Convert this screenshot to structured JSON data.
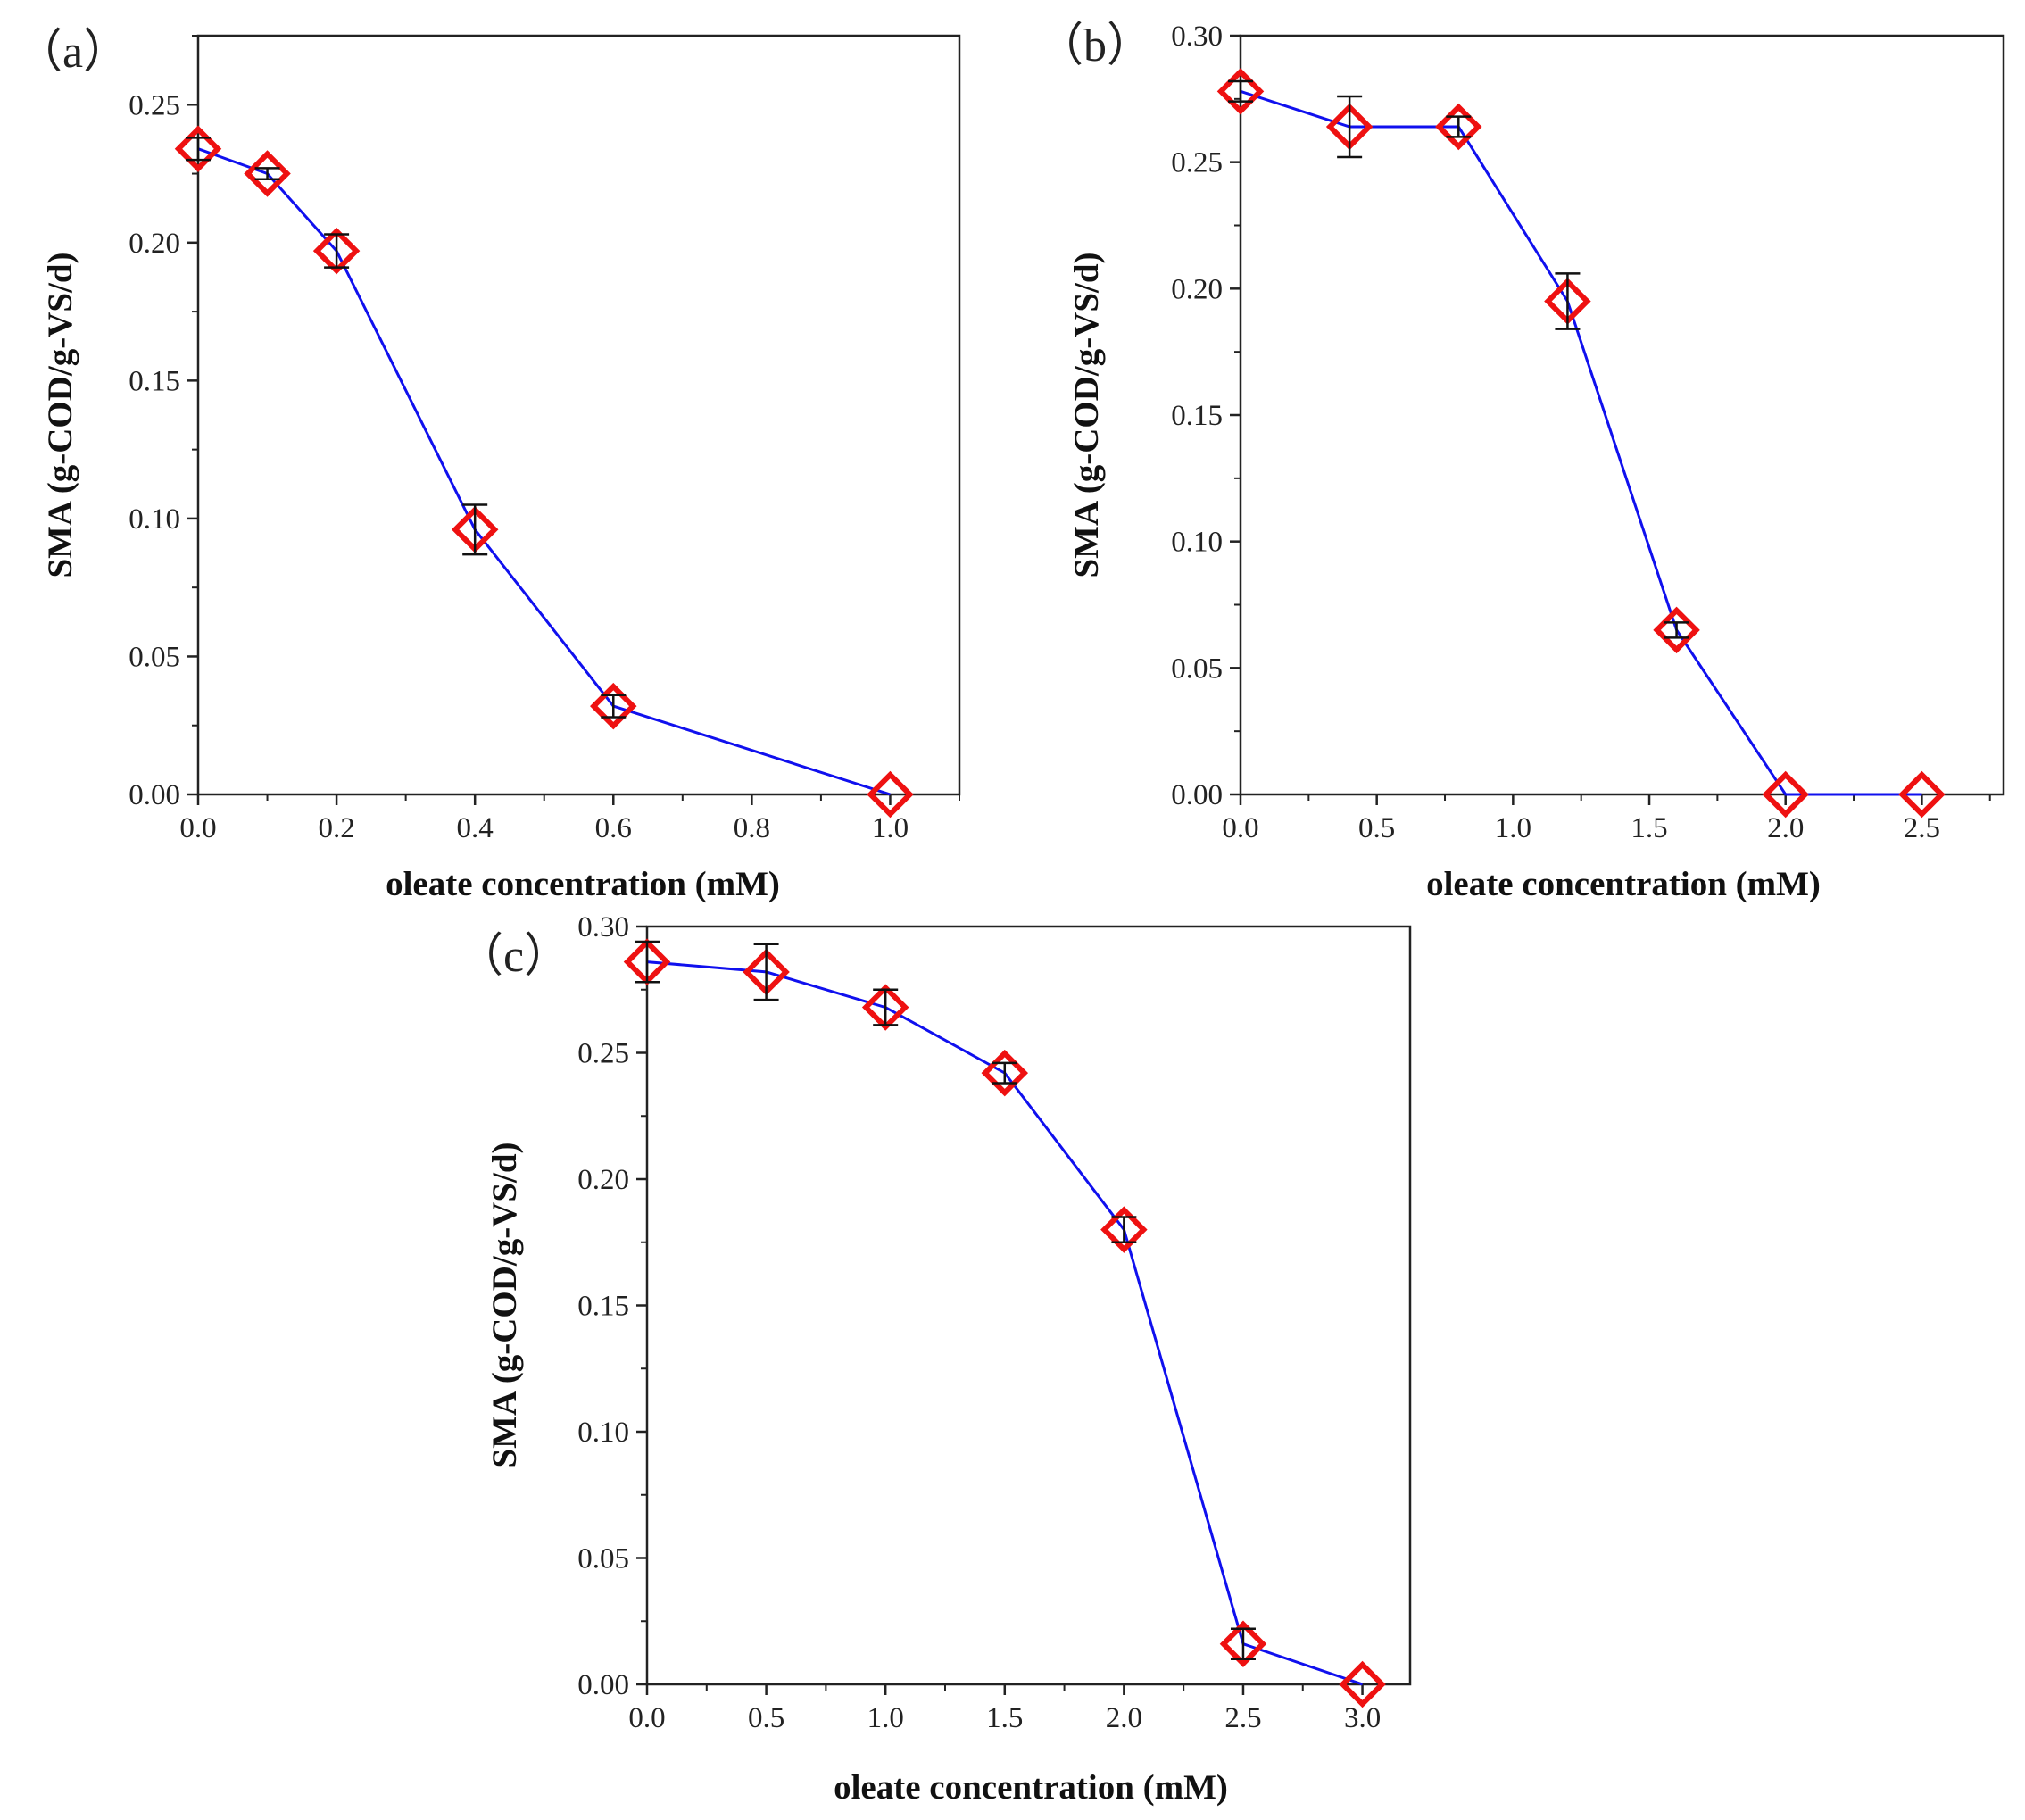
{
  "chart_data": [
    {
      "type": "line",
      "panel_label": "（a）",
      "xlabel": "oleate concentration (mM)",
      "ylabel": "SMA (g-COD/g-VS/d)",
      "xlim": [
        0.0,
        1.1
      ],
      "ylim": [
        0.0,
        0.275
      ],
      "xticks": [
        "0.0",
        "0.2",
        "0.4",
        "0.6",
        "0.8",
        "1.0"
      ],
      "yticks": [
        "0.00",
        "0.05",
        "0.10",
        "0.15",
        "0.20",
        "0.25"
      ],
      "x": [
        0.0,
        0.1,
        0.2,
        0.4,
        0.6,
        1.0
      ],
      "series": [
        {
          "name": "SMA",
          "values": [
            0.234,
            0.225,
            0.197,
            0.096,
            0.032,
            0.0
          ],
          "errors": [
            0.004,
            0.002,
            0.006,
            0.009,
            0.004,
            0.0
          ]
        }
      ],
      "line_color": "#1010ee",
      "marker_color": "#ee1111",
      "marker": "diamond"
    },
    {
      "type": "line",
      "panel_label": "（b）",
      "xlabel": "oleate concentration (mM)",
      "ylabel": "SMA (g-COD/g-VS/d)",
      "xlim": [
        0.0,
        2.8
      ],
      "ylim": [
        0.0,
        0.3
      ],
      "xticks": [
        "0.0",
        "0.5",
        "1.0",
        "1.5",
        "2.0",
        "2.5"
      ],
      "yticks": [
        "0.00",
        "0.05",
        "0.10",
        "0.15",
        "0.20",
        "0.25",
        "0.30"
      ],
      "x": [
        0.0,
        0.4,
        0.8,
        1.2,
        1.6,
        2.0,
        2.5
      ],
      "series": [
        {
          "name": "SMA",
          "values": [
            0.278,
            0.264,
            0.264,
            0.195,
            0.065,
            0.0,
            0.0
          ],
          "errors": [
            0.004,
            0.012,
            0.004,
            0.011,
            0.003,
            0.0,
            0.0
          ]
        }
      ],
      "line_color": "#1010ee",
      "marker_color": "#ee1111",
      "marker": "diamond"
    },
    {
      "type": "line",
      "panel_label": "（c）",
      "xlabel": "oleate concentration (mM)",
      "ylabel": "SMA (g-COD/g-VS/d)",
      "xlim": [
        0.0,
        3.2
      ],
      "ylim": [
        0.0,
        0.3
      ],
      "xticks": [
        "0.0",
        "0.5",
        "1.0",
        "1.5",
        "2.0",
        "2.5",
        "3.0"
      ],
      "yticks": [
        "0.00",
        "0.05",
        "0.10",
        "0.15",
        "0.20",
        "0.25",
        "0.30"
      ],
      "x": [
        0.0,
        0.5,
        1.0,
        1.5,
        2.0,
        2.5,
        3.0
      ],
      "series": [
        {
          "name": "SMA",
          "values": [
            0.286,
            0.282,
            0.268,
            0.242,
            0.18,
            0.016,
            0.0
          ],
          "errors": [
            0.008,
            0.011,
            0.007,
            0.004,
            0.005,
            0.006,
            0.0
          ]
        }
      ],
      "line_color": "#1010ee",
      "marker_color": "#ee1111",
      "marker": "diamond"
    }
  ]
}
